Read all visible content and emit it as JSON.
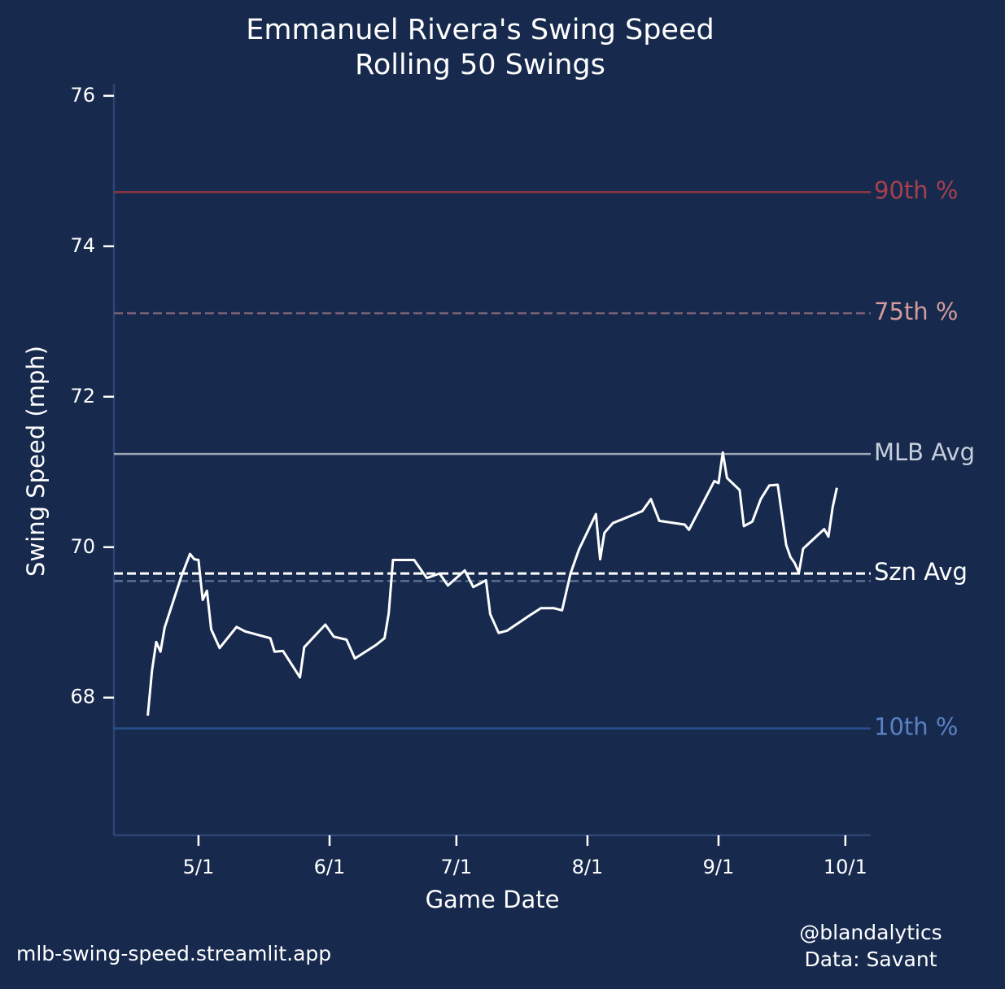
{
  "chart_data": {
    "type": "line",
    "title": "Emmanuel Rivera's Swing Speed",
    "subtitle": "Rolling 50 Swings",
    "x_label": "Game Date",
    "y_label": "Swing Speed (mph)",
    "x": [
      "4/19",
      "4/20",
      "4/21",
      "4/22",
      "4/23",
      "4/27",
      "4/29",
      "4/30",
      "5/1",
      "5/2",
      "5/3",
      "5/4",
      "5/6",
      "5/10",
      "5/12",
      "5/18",
      "5/19",
      "5/21",
      "5/25",
      "5/26",
      "5/31",
      "6/2",
      "6/5",
      "6/7",
      "6/12",
      "6/14",
      "6/15",
      "6/16",
      "6/21",
      "6/24",
      "6/27",
      "6/29",
      "7/3",
      "7/5",
      "7/8",
      "7/9",
      "7/11",
      "7/13",
      "7/18",
      "7/21",
      "7/24",
      "7/26",
      "7/28",
      "7/30",
      "8/3",
      "8/4",
      "8/5",
      "8/7",
      "8/14",
      "8/16",
      "8/18",
      "8/24",
      "8/25",
      "8/31",
      "9/1",
      "9/2",
      "9/3",
      "9/6",
      "9/7",
      "9/9",
      "9/11",
      "9/13",
      "9/15",
      "9/17",
      "9/18",
      "9/19",
      "9/20",
      "9/21",
      "9/26",
      "9/27",
      "9/28",
      "9/29"
    ],
    "series": [
      {
        "color": "#ffffff",
        "values": [
          67.76,
          68.36,
          68.74,
          68.61,
          68.93,
          69.62,
          69.91,
          69.84,
          69.83,
          69.3,
          69.42,
          68.91,
          68.66,
          68.94,
          68.88,
          68.79,
          68.61,
          68.62,
          68.27,
          68.67,
          68.97,
          68.81,
          68.77,
          68.52,
          68.7,
          68.79,
          69.12,
          69.83,
          69.83,
          69.59,
          69.65,
          69.49,
          69.69,
          69.47,
          69.56,
          69.11,
          68.86,
          68.89,
          69.08,
          69.19,
          69.19,
          69.16,
          69.65,
          69.97,
          70.44,
          69.84,
          70.19,
          70.32,
          70.48,
          70.64,
          70.35,
          70.3,
          70.23,
          70.88,
          70.85,
          71.26,
          70.92,
          70.76,
          70.28,
          70.34,
          70.64,
          70.82,
          70.83,
          70.03,
          69.87,
          69.79,
          69.66,
          69.98,
          70.24,
          70.14,
          70.53,
          70.79
        ]
      }
    ],
    "reference_lines": [
      {
        "label": "90th %",
        "value": 74.72,
        "color": "#8a3540",
        "label_color": "#a8404c",
        "dashed": false
      },
      {
        "label": "75th %",
        "value": 73.11,
        "color": "#7a6274",
        "label_color": "#d49a9c",
        "dashed": true
      },
      {
        "label": "MLB Avg",
        "value": 71.24,
        "color": "#a2aaba",
        "label_color": "#c6cedb",
        "dashed": false
      },
      {
        "value": 69.55,
        "color": "#5a7192",
        "dashed": true
      },
      {
        "label": "Szn Avg",
        "value": 69.65,
        "color": "#ffffff",
        "label_color": "#ffffff",
        "dashed": true
      },
      {
        "label": "10th %",
        "value": 67.59,
        "color": "#2a4f8e",
        "label_color": "#5a82c2",
        "dashed": false
      }
    ],
    "xlim": [
      "4/11",
      "10/7"
    ],
    "xticks": [
      "5/1",
      "6/1",
      "7/1",
      "8/1",
      "9/1",
      "10/1"
    ],
    "ylim": [
      66.17,
      76.16
    ],
    "yticks": [
      68,
      70,
      72,
      74,
      76
    ],
    "grid": false,
    "footer_left": "mlb-swing-speed.streamlit.app",
    "footer_right": [
      "@blandalytics",
      "Data: Savant"
    ]
  }
}
